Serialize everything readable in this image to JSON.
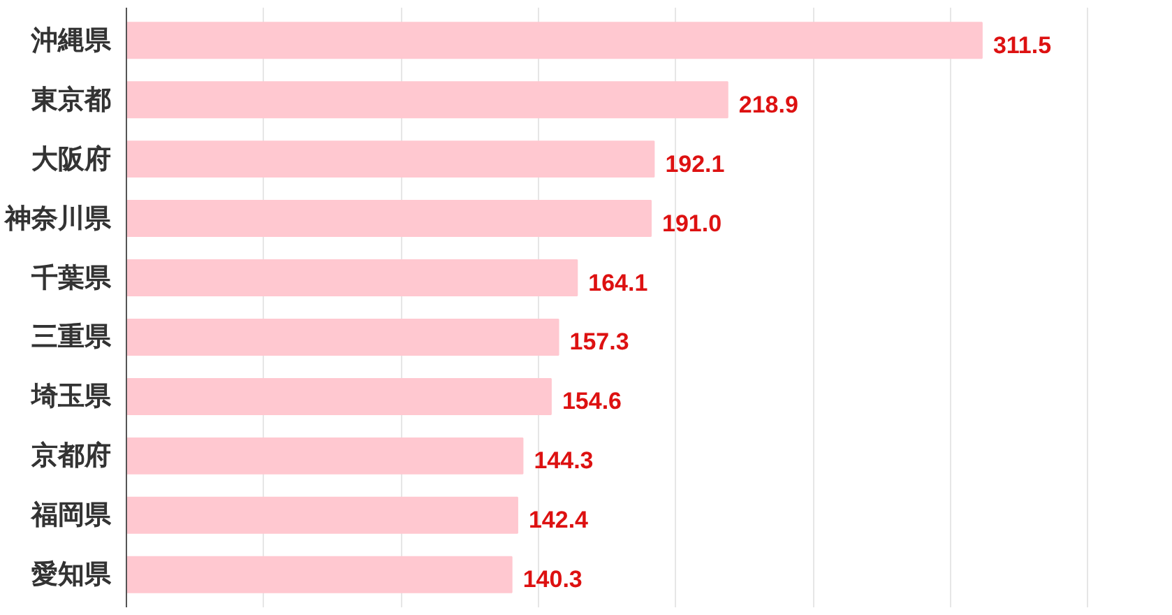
{
  "chart_data": {
    "type": "bar",
    "orientation": "horizontal",
    "categories": [
      "沖縄県",
      "東京都",
      "大阪府",
      "神奈川県",
      "千葉県",
      "三重県",
      "埼玉県",
      "京都府",
      "福岡県",
      "愛知県"
    ],
    "values": [
      311.5,
      218.9,
      192.1,
      191.0,
      164.1,
      157.3,
      154.6,
      144.3,
      142.4,
      140.3
    ],
    "value_labels": [
      "311.5",
      "218.9",
      "192.1",
      "191.0",
      "164.1",
      "157.3",
      "154.6",
      "144.3",
      "142.4",
      "140.3"
    ],
    "color": "#ffc8d0",
    "grid": "x",
    "tick_labels": "y"
  }
}
